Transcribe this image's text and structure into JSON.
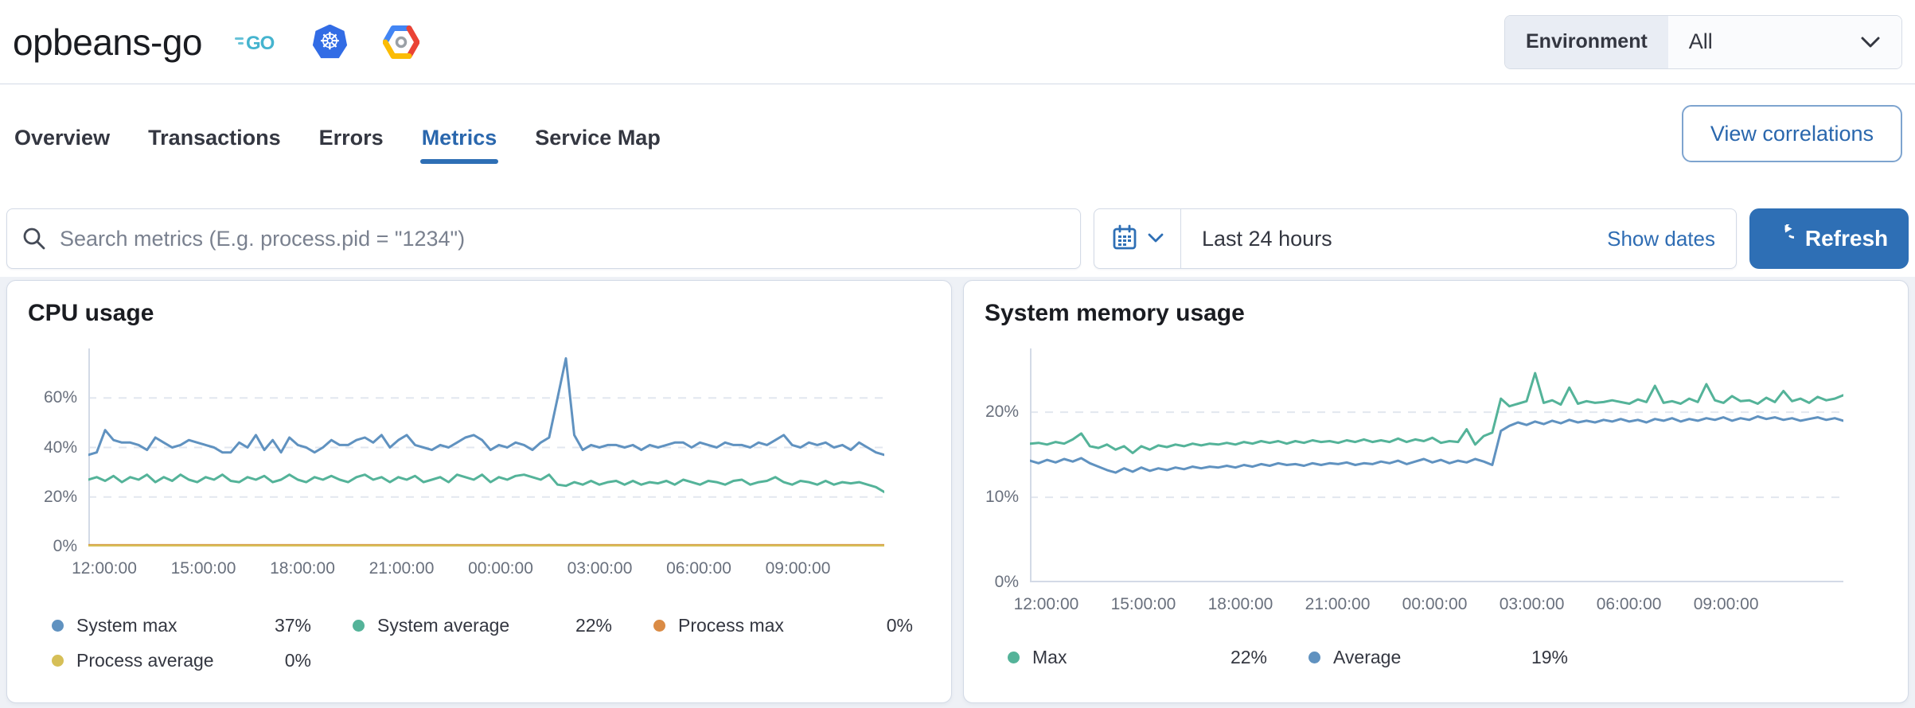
{
  "header": {
    "service_name": "opbeans-go",
    "badge_icons": [
      "go-logo",
      "kubernetes-logo",
      "google-cloud-logo"
    ],
    "environment": {
      "label": "Environment",
      "value": "All"
    }
  },
  "tabs": {
    "items": [
      {
        "label": "Overview",
        "active": false
      },
      {
        "label": "Transactions",
        "active": false
      },
      {
        "label": "Errors",
        "active": false
      },
      {
        "label": "Metrics",
        "active": true
      },
      {
        "label": "Service Map",
        "active": false
      }
    ],
    "correlations_label": "View correlations",
    "active_color": "#2e6fb5"
  },
  "search": {
    "placeholder": "Search metrics (E.g. process.pid = \"1234\")"
  },
  "datepicker": {
    "range_label": "Last 24 hours",
    "show_dates_label": "Show dates",
    "refresh_label": "Refresh",
    "primary_color": "#2e6fb5"
  },
  "chart_data": [
    {
      "type": "line",
      "title": "CPU usage",
      "x_tick_labels": [
        "12:00:00",
        "15:00:00",
        "18:00:00",
        "21:00:00",
        "00:00:00",
        "03:00:00",
        "06:00:00",
        "09:00:00"
      ],
      "x_tick_offset_frac": 0.02,
      "x_tick_step_frac": 0.1245,
      "y_ticks": [
        {
          "label": "0%",
          "value": 0
        },
        {
          "label": "20%",
          "value": 20
        },
        {
          "label": "40%",
          "value": 40
        },
        {
          "label": "60%",
          "value": 60
        }
      ],
      "y_max": 80,
      "grid": true,
      "legend_position": "bottom",
      "series": [
        {
          "name": "System max",
          "color": "#6092C0",
          "values": [
            37,
            38,
            47,
            43,
            42,
            42,
            41,
            39,
            44,
            42,
            40,
            41,
            43,
            42,
            41,
            40,
            38,
            38,
            42,
            40,
            45,
            39,
            43,
            38,
            44,
            41,
            40,
            38,
            40,
            43,
            41,
            41,
            43,
            44,
            42,
            45,
            40,
            43,
            45,
            41,
            40,
            39,
            41,
            40,
            42,
            44,
            45,
            43,
            39,
            41,
            40,
            42,
            41,
            39,
            42,
            44,
            60,
            76,
            45,
            39,
            41,
            40,
            41,
            41,
            40,
            41,
            39,
            41,
            40,
            41,
            42,
            42,
            40,
            42,
            41,
            40,
            42,
            41,
            41,
            40,
            42,
            41,
            43,
            45,
            41,
            40,
            42,
            41,
            42,
            40,
            41,
            39,
            42,
            40,
            38,
            37
          ]
        },
        {
          "name": "System average",
          "color": "#54B399",
          "values": [
            27,
            28,
            26.5,
            28.5,
            26,
            28,
            27,
            29,
            26,
            28,
            26.5,
            29,
            27,
            26,
            28,
            27,
            29,
            26.5,
            26,
            28,
            27,
            28.5,
            26,
            27,
            29,
            27,
            26,
            28,
            27,
            28.5,
            27,
            26,
            28,
            29,
            27,
            28,
            26,
            28,
            27,
            28.5,
            26,
            27,
            28,
            26,
            29,
            28,
            27,
            29,
            26,
            28,
            27,
            28.5,
            29,
            28,
            27,
            29,
            25,
            24.5,
            26,
            25,
            26.5,
            25,
            26,
            26.5,
            25,
            26.5,
            25,
            26,
            25.5,
            26.5,
            25,
            27,
            26,
            25,
            26.5,
            26,
            25,
            26.5,
            27,
            25,
            26,
            26.5,
            28,
            26,
            25,
            26.5,
            26,
            25,
            26.5,
            25,
            26,
            25.5,
            26,
            25,
            24,
            22
          ]
        },
        {
          "name": "Process max",
          "color": "#DA8B45",
          "constant": 0.5,
          "points": 96
        },
        {
          "name": "Process average",
          "color": "#D6BF57",
          "constant": 0.3,
          "points": 96
        }
      ],
      "legend": [
        {
          "name": "System max",
          "color": "#6092C0",
          "value": "37%"
        },
        {
          "name": "System average",
          "color": "#54B399",
          "value": "22%"
        },
        {
          "name": "Process max",
          "color": "#DA8B45",
          "value": "0%"
        },
        {
          "name": "Process average",
          "color": "#D6BF57",
          "value": "0%"
        }
      ]
    },
    {
      "type": "line",
      "title": "System memory usage",
      "x_tick_labels": [
        "12:00:00",
        "15:00:00",
        "18:00:00",
        "21:00:00",
        "00:00:00",
        "03:00:00",
        "06:00:00",
        "09:00:00"
      ],
      "x_tick_offset_frac": 0.02,
      "x_tick_step_frac": 0.1194,
      "y_ticks": [
        {
          "label": "0%",
          "value": 0
        },
        {
          "label": "10%",
          "value": 10
        },
        {
          "label": "20%",
          "value": 20
        }
      ],
      "y_max": 27.5,
      "grid": true,
      "legend_position": "bottom",
      "series": [
        {
          "name": "Max",
          "color": "#54B399",
          "values": [
            16.3,
            16.4,
            16.2,
            16.5,
            16.3,
            16.8,
            17.5,
            16,
            15.8,
            16.2,
            15.6,
            16,
            15.2,
            16,
            15.6,
            16.1,
            15.9,
            16.2,
            16,
            16.3,
            16.1,
            16.3,
            16.2,
            16.4,
            16.2,
            16.5,
            16.3,
            16.6,
            16.4,
            16.6,
            16.3,
            16.6,
            16.4,
            16.7,
            16.5,
            16.6,
            16.4,
            16.7,
            16.5,
            16.8,
            16.5,
            16.7,
            16.5,
            16.9,
            16.5,
            16.8,
            16.6,
            17,
            16.4,
            16.6,
            16.5,
            18,
            16.2,
            17.2,
            17.6,
            21.6,
            20.7,
            21,
            21.3,
            24.6,
            21.1,
            21.4,
            20.9,
            22.9,
            21,
            21.3,
            21.1,
            21.2,
            21.4,
            21.2,
            21,
            21.5,
            21.2,
            23.1,
            21.1,
            21.3,
            21,
            21.6,
            21.2,
            23.3,
            21.4,
            21.1,
            21.9,
            21.3,
            21.4,
            21,
            21.7,
            21.2,
            22.5,
            21.3,
            21.6,
            21.1,
            21.8,
            21.4,
            21.6,
            22
          ]
        },
        {
          "name": "Average",
          "color": "#6092C0",
          "values": [
            14.3,
            14,
            14.4,
            14.1,
            14.5,
            14.2,
            14.6,
            14,
            13.6,
            13.2,
            12.9,
            13.4,
            13,
            13.5,
            13.1,
            13.4,
            13.2,
            13.5,
            13.3,
            13.6,
            13.4,
            13.6,
            13.5,
            13.7,
            13.5,
            13.8,
            13.6,
            13.9,
            13.7,
            14,
            13.8,
            13.9,
            13.7,
            14,
            13.8,
            14,
            13.9,
            14.1,
            13.8,
            14,
            13.9,
            14.2,
            14,
            14.3,
            13.9,
            14.2,
            14.5,
            14.1,
            14.4,
            14,
            14.3,
            14.1,
            14.5,
            14.2,
            13.8,
            17.8,
            18.4,
            18.8,
            18.5,
            18.9,
            18.6,
            19,
            18.7,
            19.1,
            18.8,
            19,
            18.8,
            19.1,
            18.9,
            19.2,
            18.9,
            19.1,
            18.8,
            19.2,
            19,
            19.3,
            18.9,
            19.2,
            19,
            19.3,
            19.1,
            19.4,
            19,
            19.3,
            19.1,
            19.5,
            19.2,
            19.4,
            19.1,
            19.3,
            19,
            19.2,
            19.4,
            19.1,
            19.3,
            19
          ]
        }
      ],
      "legend": [
        {
          "name": "Max",
          "color": "#54B399",
          "value": "22%"
        },
        {
          "name": "Average",
          "color": "#6092C0",
          "value": "19%"
        }
      ]
    }
  ]
}
